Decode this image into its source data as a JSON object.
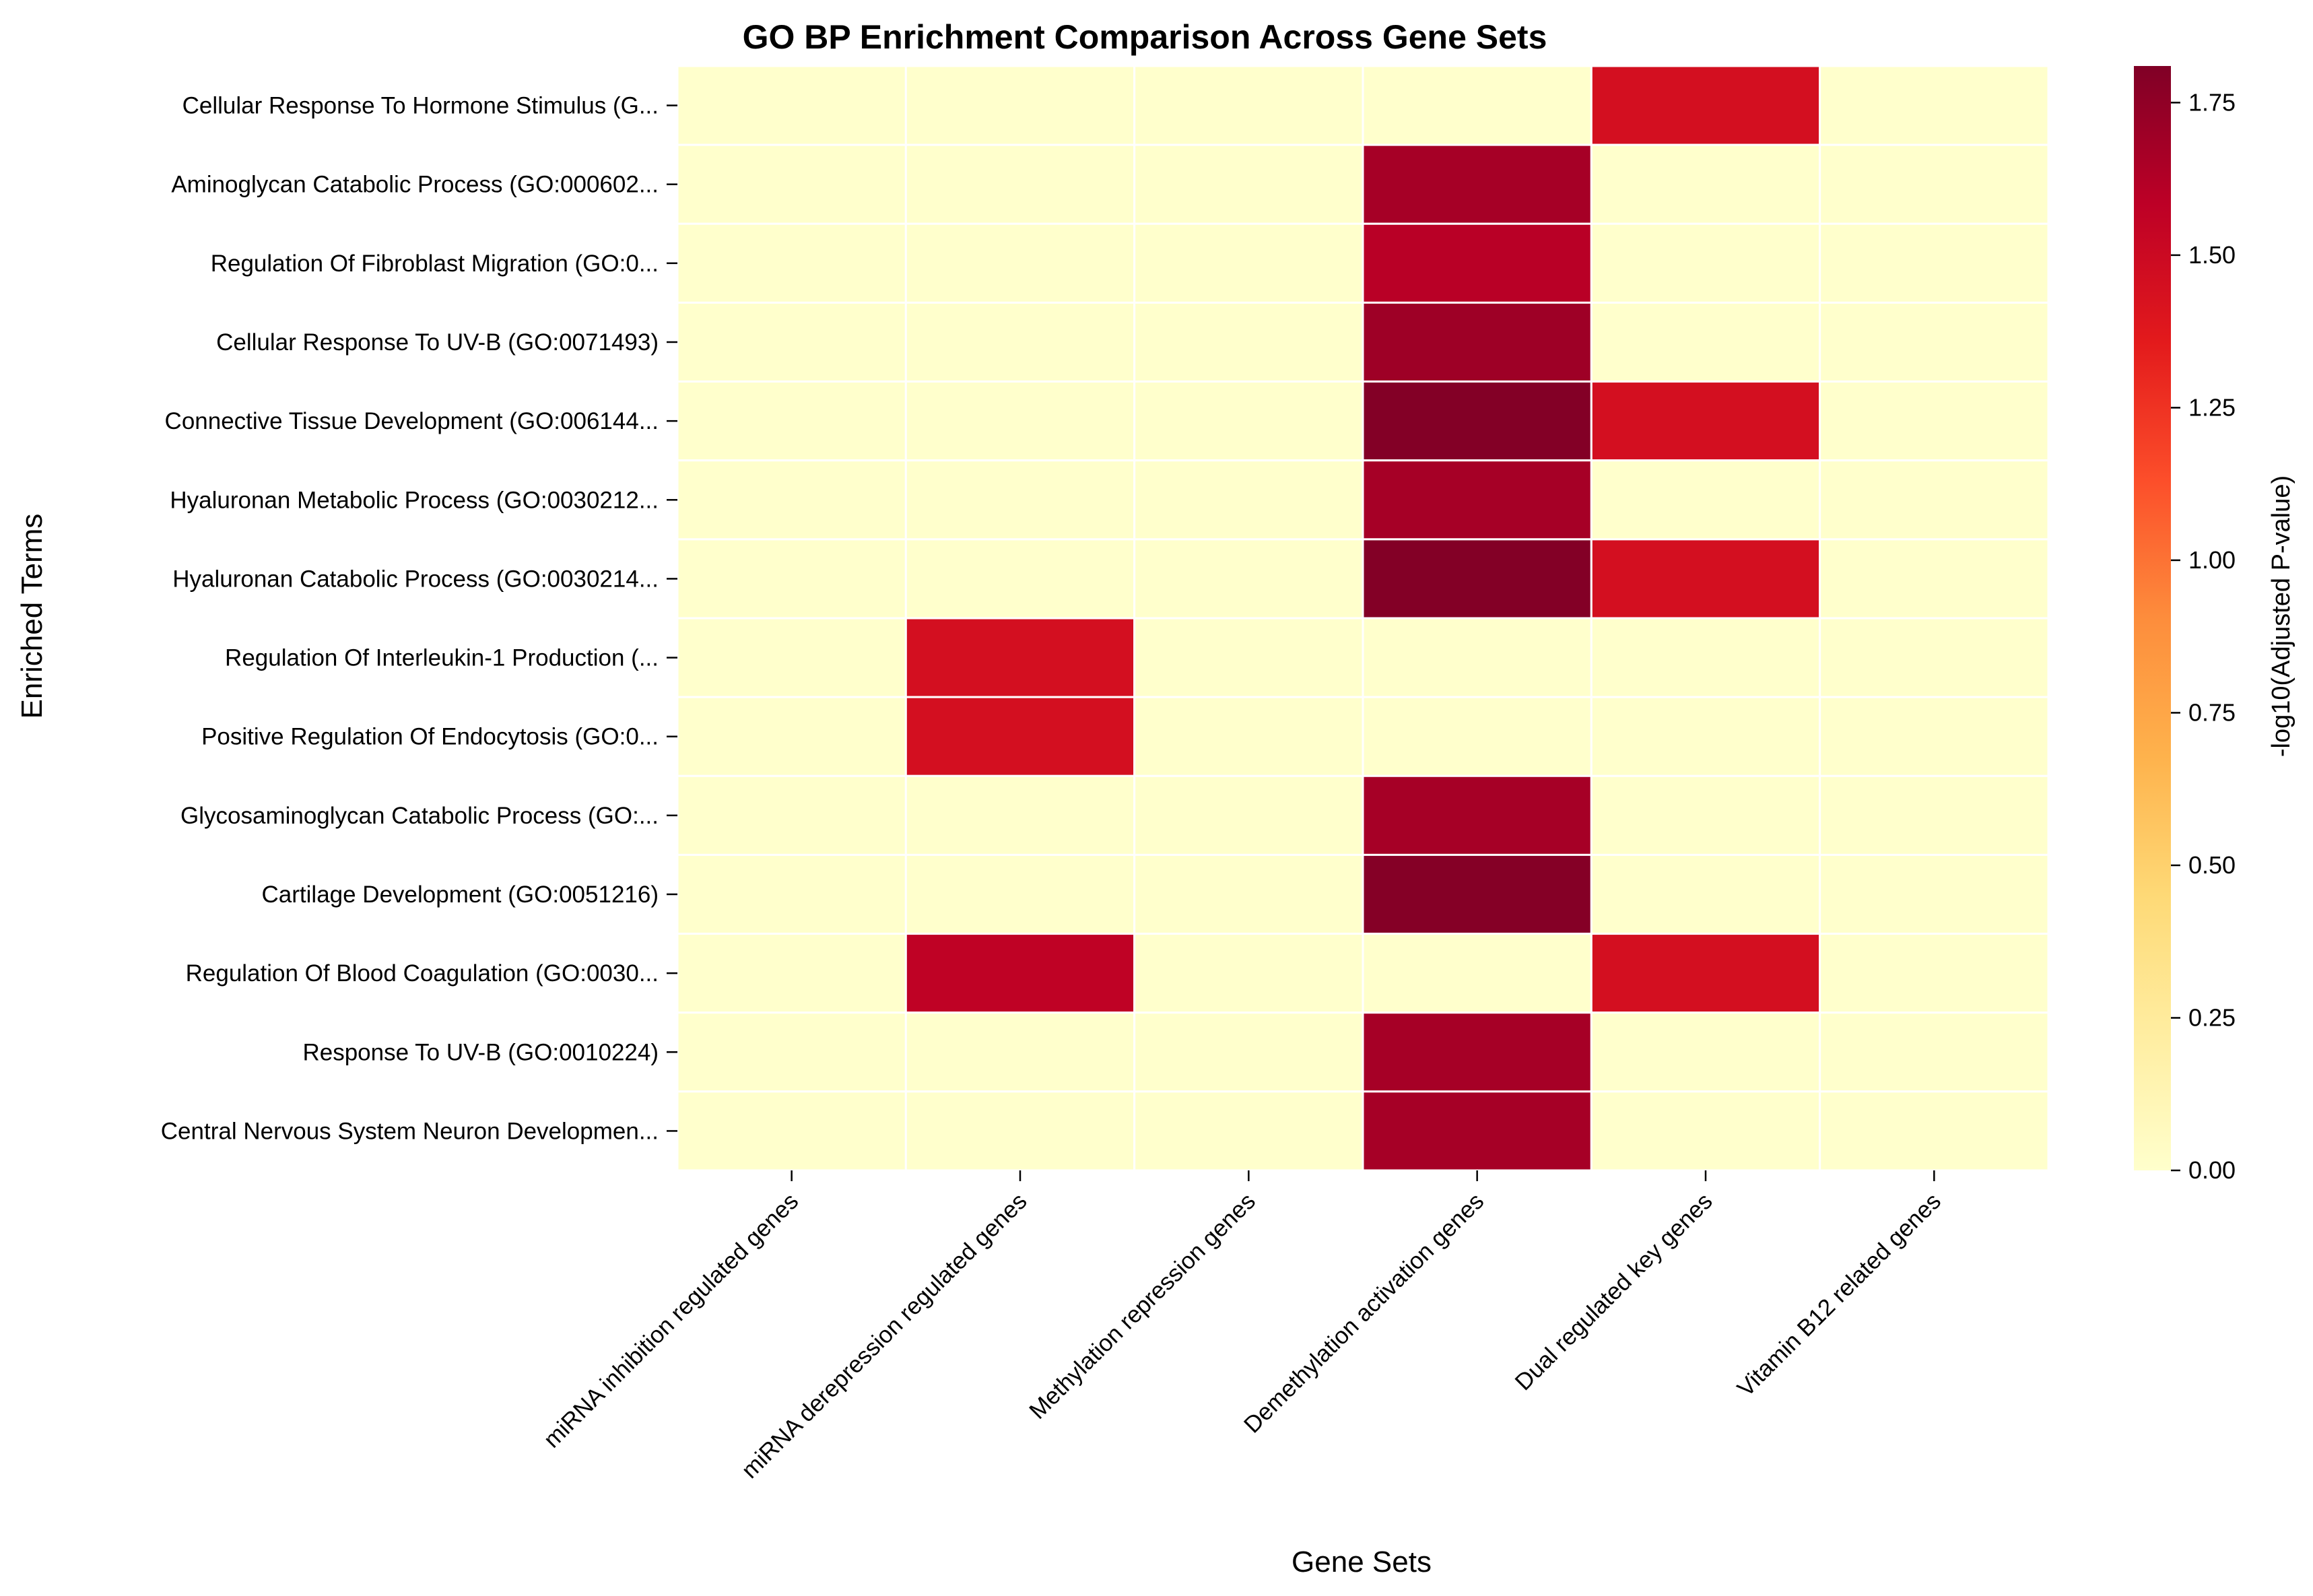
{
  "chart_data": {
    "type": "heatmap",
    "title": "GO BP Enrichment Comparison Across Gene Sets",
    "xlabel": "Gene Sets",
    "ylabel": "Enriched Terms",
    "colorbar_label": "-log10(Adjusted P-value)",
    "colormap": "YlOrRd",
    "colorbar_range": [
      0,
      1.81
    ],
    "colorbar_ticks": [
      "0.00",
      "0.25",
      "0.50",
      "0.75",
      "1.00",
      "1.25",
      "1.50",
      "1.75"
    ],
    "x": [
      "miRNA inhibition regulated genes",
      "miRNA derepression regulated genes",
      "Methylation repression genes",
      "Demethylation activation genes",
      "Dual regulated key genes",
      "Vitamin B12 related genes"
    ],
    "y": [
      "Cellular Response To Hormone Stimulus (G...",
      "Aminoglycan Catabolic Process (GO:000602...",
      "Regulation Of Fibroblast Migration (GO:0...",
      "Cellular Response To UV-B (GO:0071493)",
      "Connective Tissue Development (GO:006144...",
      "Hyaluronan Metabolic Process (GO:0030212...",
      "Hyaluronan Catabolic Process (GO:0030214...",
      "Regulation Of Interleukin-1 Production (...",
      "Positive Regulation Of Endocytosis (GO:0...",
      "Glycosaminoglycan Catabolic Process (GO:...",
      "Cartilage Development (GO:0051216)",
      "Regulation Of Blood Coagulation (GO:0030...",
      "Response To UV-B (GO:0010224)",
      "Central Nervous System Neuron Developmen..."
    ],
    "values": [
      [
        0,
        0,
        0,
        0,
        1.45,
        0
      ],
      [
        0,
        0,
        0,
        1.67,
        0,
        0
      ],
      [
        0,
        0,
        0,
        1.6,
        0,
        0
      ],
      [
        0,
        0,
        0,
        1.7,
        0,
        0
      ],
      [
        0,
        0,
        0,
        1.8,
        1.45,
        0
      ],
      [
        0,
        0,
        0,
        1.67,
        0,
        0
      ],
      [
        0,
        0,
        0,
        1.8,
        1.45,
        0
      ],
      [
        0,
        1.45,
        0,
        0,
        0,
        0
      ],
      [
        0,
        1.45,
        0,
        0,
        0,
        0
      ],
      [
        0,
        0,
        0,
        1.67,
        0,
        0
      ],
      [
        0,
        0,
        0,
        1.79,
        0,
        0
      ],
      [
        0,
        1.57,
        0,
        0,
        1.45,
        0
      ],
      [
        0,
        0,
        0,
        1.67,
        0,
        0
      ],
      [
        0,
        0,
        0,
        1.67,
        0,
        0
      ]
    ],
    "grid": false,
    "cell_separators": "white"
  }
}
